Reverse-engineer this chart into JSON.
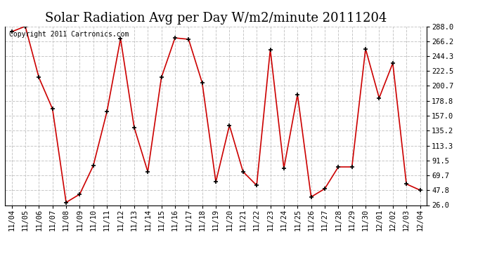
{
  "title": "Solar Radiation Avg per Day W/m2/minute 20111204",
  "copyright": "Copyright 2011 Cartronics.com",
  "line_color": "#cc0000",
  "marker_color": "#000000",
  "bg_color": "#ffffff",
  "plot_bg_color": "#ffffff",
  "grid_color": "#c8c8c8",
  "dates": [
    "11/04",
    "11/05",
    "11/06",
    "11/07",
    "11/08",
    "11/09",
    "11/10",
    "11/11",
    "11/12",
    "11/13",
    "11/14",
    "11/15",
    "11/16",
    "11/17",
    "11/18",
    "11/19",
    "11/20",
    "11/21",
    "11/22",
    "11/23",
    "11/24",
    "11/25",
    "11/26",
    "11/27",
    "11/28",
    "11/29",
    "11/30",
    "12/01",
    "12/02",
    "12/03",
    "12/04"
  ],
  "values": [
    280,
    288,
    213,
    167,
    30,
    42,
    84,
    163,
    270,
    140,
    75,
    213,
    271,
    269,
    205,
    60,
    143,
    75,
    55,
    254,
    80,
    188,
    38,
    50,
    82,
    82,
    255,
    183,
    234,
    57,
    48
  ],
  "yticks": [
    26.0,
    47.8,
    69.7,
    91.5,
    113.3,
    135.2,
    157.0,
    178.8,
    200.7,
    222.5,
    244.3,
    266.2,
    288.0
  ],
  "ylim": [
    26.0,
    288.0
  ],
  "title_fontsize": 13,
  "tick_fontsize": 7.5,
  "copyright_fontsize": 7
}
